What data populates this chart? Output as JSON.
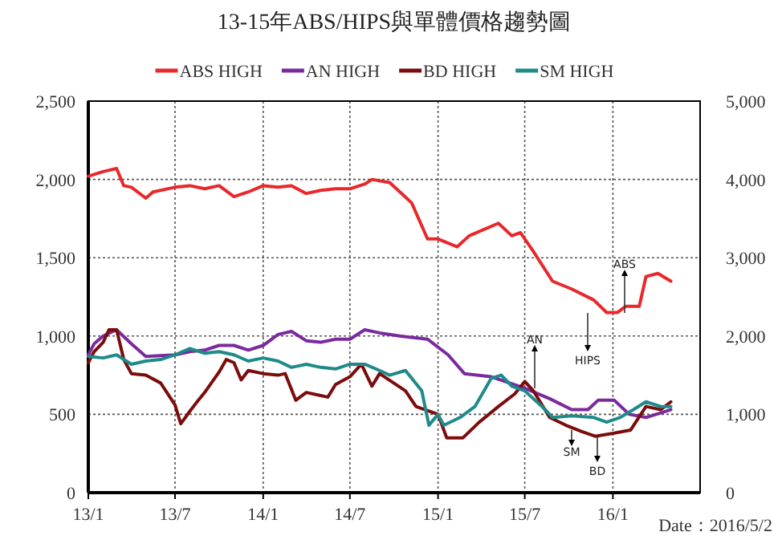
{
  "chart_data": {
    "type": "line",
    "title": "13-15年ABS/HIPS與單體價格趨勢圖",
    "legend": "top",
    "grid": true,
    "marker": "none",
    "line_style": "solid",
    "xlim": [
      "2013-01-01",
      "2016-07-01"
    ],
    "xticks": [
      {
        "value": "2013-01",
        "label": "13/1"
      },
      {
        "value": "2013-07",
        "label": "13/7"
      },
      {
        "value": "2014-01",
        "label": "14/1"
      },
      {
        "value": "2014-07",
        "label": "14/7"
      },
      {
        "value": "2015-01",
        "label": "15/1"
      },
      {
        "value": "2015-07",
        "label": "15/7"
      },
      {
        "value": "2016-01",
        "label": "16/1"
      }
    ],
    "ylim": [
      0,
      2500
    ],
    "yticks": [
      0,
      500,
      {
        "value": 1000,
        "label": "1,000"
      },
      {
        "value": 1500,
        "label": "1,500"
      },
      {
        "value": 2000,
        "label": "2,000"
      },
      {
        "value": 2500,
        "label": "2,500"
      }
    ],
    "y2lim": [
      0,
      5000
    ],
    "y2ticks": [
      0,
      {
        "value": 1000,
        "label": "1,000"
      },
      {
        "value": 2000,
        "label": "2,000"
      },
      {
        "value": 3000,
        "label": "3,000"
      },
      {
        "value": 4000,
        "label": "4,000"
      },
      {
        "value": 5000,
        "label": "5,000"
      }
    ],
    "series": [
      {
        "name": "ABS HIGH",
        "color": "#e8282b",
        "x": [
          "2013-01-01",
          "2013-02-01",
          "2013-03-01",
          "2013-03-16",
          "2013-04-01",
          "2013-05-01",
          "2013-05-16",
          "2013-07-01",
          "2013-08-01",
          "2013-09-01",
          "2013-10-01",
          "2013-11-01",
          "2013-12-01",
          "2014-01-01",
          "2014-02-01",
          "2014-03-01",
          "2014-04-01",
          "2014-05-01",
          "2014-06-01",
          "2014-07-01",
          "2014-08-01",
          "2014-08-16",
          "2014-09-22",
          "2014-11-07",
          "2014-12-10",
          "2015-01-01",
          "2015-02-10",
          "2015-03-07",
          "2015-05-07",
          "2015-06-04",
          "2015-06-22",
          "2015-07-19",
          "2015-08-28",
          "2015-10-07",
          "2015-11-22",
          "2015-12-19",
          "2016-01-10",
          "2016-01-28",
          "2016-02-25",
          "2016-03-10",
          "2016-04-04",
          "2016-05-01"
        ],
        "values": [
          2020,
          2050,
          2070,
          1960,
          1950,
          1880,
          1920,
          1950,
          1960,
          1940,
          1960,
          1890,
          1920,
          1960,
          1950,
          1960,
          1910,
          1930,
          1940,
          1940,
          1970,
          2000,
          1980,
          1850,
          1620,
          1620,
          1570,
          1640,
          1720,
          1640,
          1660,
          1540,
          1350,
          1300,
          1230,
          1150,
          1150,
          1190,
          1190,
          1380,
          1400,
          1350
        ]
      },
      {
        "name": "AN HIGH",
        "color": "#7a2a9e",
        "x": [
          "2013-01-01",
          "2013-01-13",
          "2013-02-01",
          "2013-03-01",
          "2013-04-01",
          "2013-05-01",
          "2013-07-01",
          "2013-08-01",
          "2013-09-01",
          "2013-10-01",
          "2013-11-01",
          "2013-12-01",
          "2014-01-01",
          "2014-02-01",
          "2014-03-01",
          "2014-04-01",
          "2014-05-01",
          "2014-06-01",
          "2014-07-01",
          "2014-08-01",
          "2014-09-01",
          "2014-10-13",
          "2014-12-10",
          "2015-01-22",
          "2015-02-25",
          "2015-04-22",
          "2015-06-28",
          "2015-08-22",
          "2015-10-07",
          "2015-11-10",
          "2015-12-01",
          "2016-01-04",
          "2016-02-04",
          "2016-03-10",
          "2016-05-01"
        ],
        "values": [
          880,
          950,
          1000,
          1040,
          950,
          870,
          880,
          900,
          910,
          940,
          940,
          910,
          940,
          1010,
          1030,
          970,
          960,
          980,
          980,
          1040,
          1020,
          1000,
          980,
          880,
          760,
          740,
          670,
          600,
          530,
          530,
          590,
          590,
          500,
          480,
          530
        ]
      },
      {
        "name": "BD HIGH",
        "color": "#7b0c0c",
        "x": [
          "2013-01-01",
          "2013-01-13",
          "2013-02-01",
          "2013-02-13",
          "2013-03-01",
          "2013-03-16",
          "2013-04-01",
          "2013-05-01",
          "2013-06-01",
          "2013-07-01",
          "2013-07-13",
          "2013-08-01",
          "2013-08-16",
          "2013-09-01",
          "2013-10-01",
          "2013-10-16",
          "2013-11-01",
          "2013-11-16",
          "2013-12-01",
          "2014-01-01",
          "2014-02-01",
          "2014-02-16",
          "2014-03-10",
          "2014-04-01",
          "2014-05-01",
          "2014-05-16",
          "2014-06-01",
          "2014-07-01",
          "2014-07-25",
          "2014-08-16",
          "2014-09-01",
          "2014-10-25",
          "2014-11-16",
          "2015-01-01",
          "2015-01-19",
          "2015-02-22",
          "2015-03-28",
          "2015-05-07",
          "2015-06-10",
          "2015-07-01",
          "2015-07-19",
          "2015-08-22",
          "2015-09-25",
          "2015-10-28",
          "2015-11-25",
          "2016-01-04",
          "2016-02-07",
          "2016-03-10",
          "2016-04-10",
          "2016-05-01"
        ],
        "values": [
          830,
          900,
          960,
          1040,
          1040,
          850,
          760,
          750,
          700,
          560,
          440,
          520,
          580,
          640,
          770,
          850,
          830,
          720,
          780,
          760,
          750,
          760,
          590,
          640,
          620,
          610,
          690,
          740,
          820,
          680,
          760,
          650,
          550,
          500,
          350,
          350,
          450,
          550,
          630,
          710,
          650,
          480,
          430,
          390,
          360,
          380,
          400,
          550,
          530,
          580
        ]
      },
      {
        "name": "SM HIGH",
        "color": "#1f8a8a",
        "x": [
          "2013-01-01",
          "2013-02-01",
          "2013-03-01",
          "2013-04-01",
          "2013-05-01",
          "2013-06-01",
          "2013-07-01",
          "2013-08-01",
          "2013-09-01",
          "2013-10-01",
          "2013-11-01",
          "2013-12-01",
          "2014-01-01",
          "2014-02-01",
          "2014-03-01",
          "2014-04-01",
          "2014-05-01",
          "2014-06-01",
          "2014-07-01",
          "2014-08-01",
          "2014-09-01",
          "2014-09-22",
          "2014-10-25",
          "2014-11-28",
          "2014-12-13",
          "2015-01-01",
          "2015-01-13",
          "2015-02-16",
          "2015-03-19",
          "2015-04-22",
          "2015-05-13",
          "2015-06-04",
          "2015-07-01",
          "2015-08-13",
          "2015-08-28",
          "2015-10-07",
          "2015-11-22",
          "2015-12-19",
          "2016-01-16",
          "2016-02-13",
          "2016-03-10",
          "2016-04-10",
          "2016-05-01"
        ],
        "values": [
          870,
          860,
          880,
          820,
          840,
          850,
          880,
          920,
          890,
          900,
          880,
          840,
          860,
          840,
          800,
          820,
          800,
          790,
          820,
          820,
          780,
          750,
          780,
          650,
          430,
          500,
          430,
          480,
          550,
          730,
          750,
          680,
          650,
          530,
          480,
          490,
          480,
          450,
          480,
          530,
          580,
          550,
          550
        ]
      }
    ],
    "annotations": [
      "ABS",
      "AN",
      "HIPS",
      "SM",
      "BD",
      "Date：2016/5/2"
    ]
  }
}
